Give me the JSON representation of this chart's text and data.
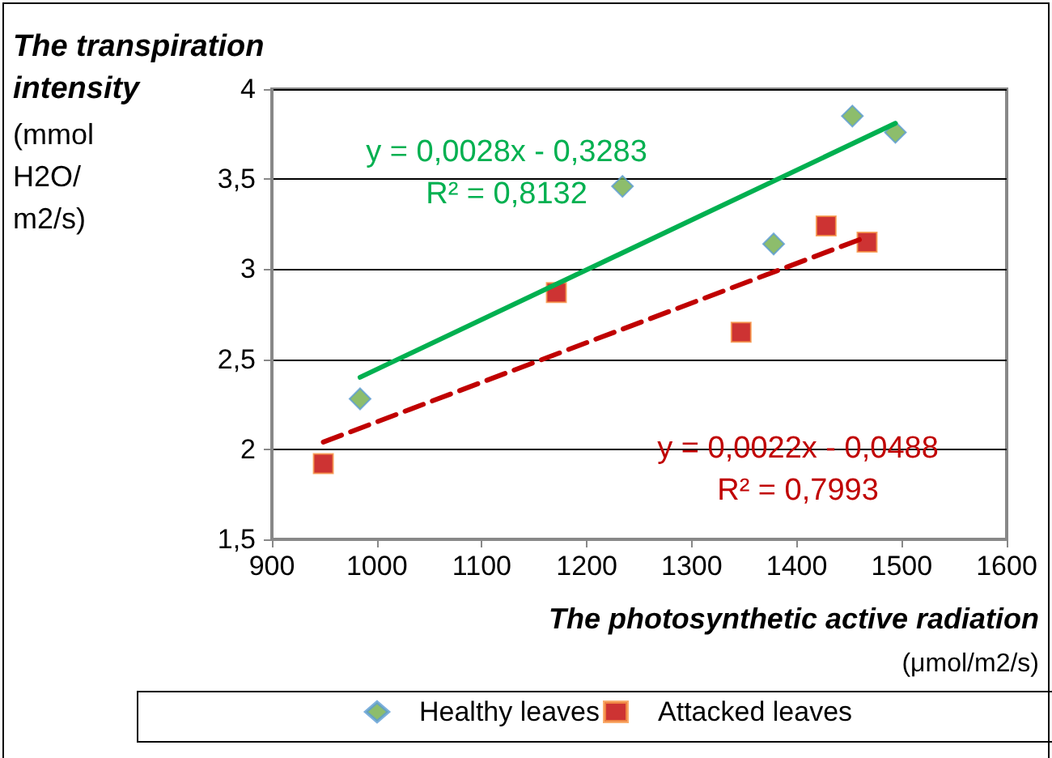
{
  "chart_data": {
    "type": "scatter",
    "ylabel": "The transpiration intensity (mmol H2O/ m2/s)",
    "xlabel": "The photosynthetic active radiation (μmol/m2/s)",
    "series": [
      {
        "name": "Healthy leaves",
        "color": "#70ad47",
        "marker": "diamond",
        "x": [
          984,
          1234,
          1378,
          1453,
          1494
        ],
        "values": [
          2.28,
          3.46,
          3.14,
          3.85,
          3.76
        ]
      },
      {
        "name": "Attacked leaves",
        "color": "#c00000",
        "marker": "square",
        "x": [
          949,
          1171,
          1347,
          1428,
          1467
        ],
        "values": [
          1.92,
          2.87,
          2.65,
          3.24,
          3.15
        ]
      },
      {
        "type": "line",
        "color": "#00b050",
        "line_style": "solid",
        "x": [
          984,
          1494
        ],
        "values": [
          2.4,
          3.81
        ]
      },
      {
        "type": "line",
        "color": "#c00000",
        "line_style": "dashed",
        "x": [
          949,
          1467
        ],
        "values": [
          2.04,
          3.18
        ]
      }
    ],
    "annotations": [
      "y = 0,0028x - 0,3283\nR² = 0,8132",
      "y = 0,0022x - 0,0488\nR² = 0,7993"
    ],
    "xlim": [
      900,
      1600
    ],
    "xticks": [
      900,
      1000,
      1100,
      1200,
      1300,
      1400,
      1500,
      1600
    ],
    "ylim": [
      1.5,
      4
    ],
    "yticks": [
      {
        "value": 1.5,
        "label": "1,5"
      },
      2,
      {
        "value": 2.5,
        "label": "2,5"
      },
      3,
      {
        "value": 3.5,
        "label": "3,5"
      },
      4
    ],
    "grid": "y",
    "legend": "bottom"
  }
}
